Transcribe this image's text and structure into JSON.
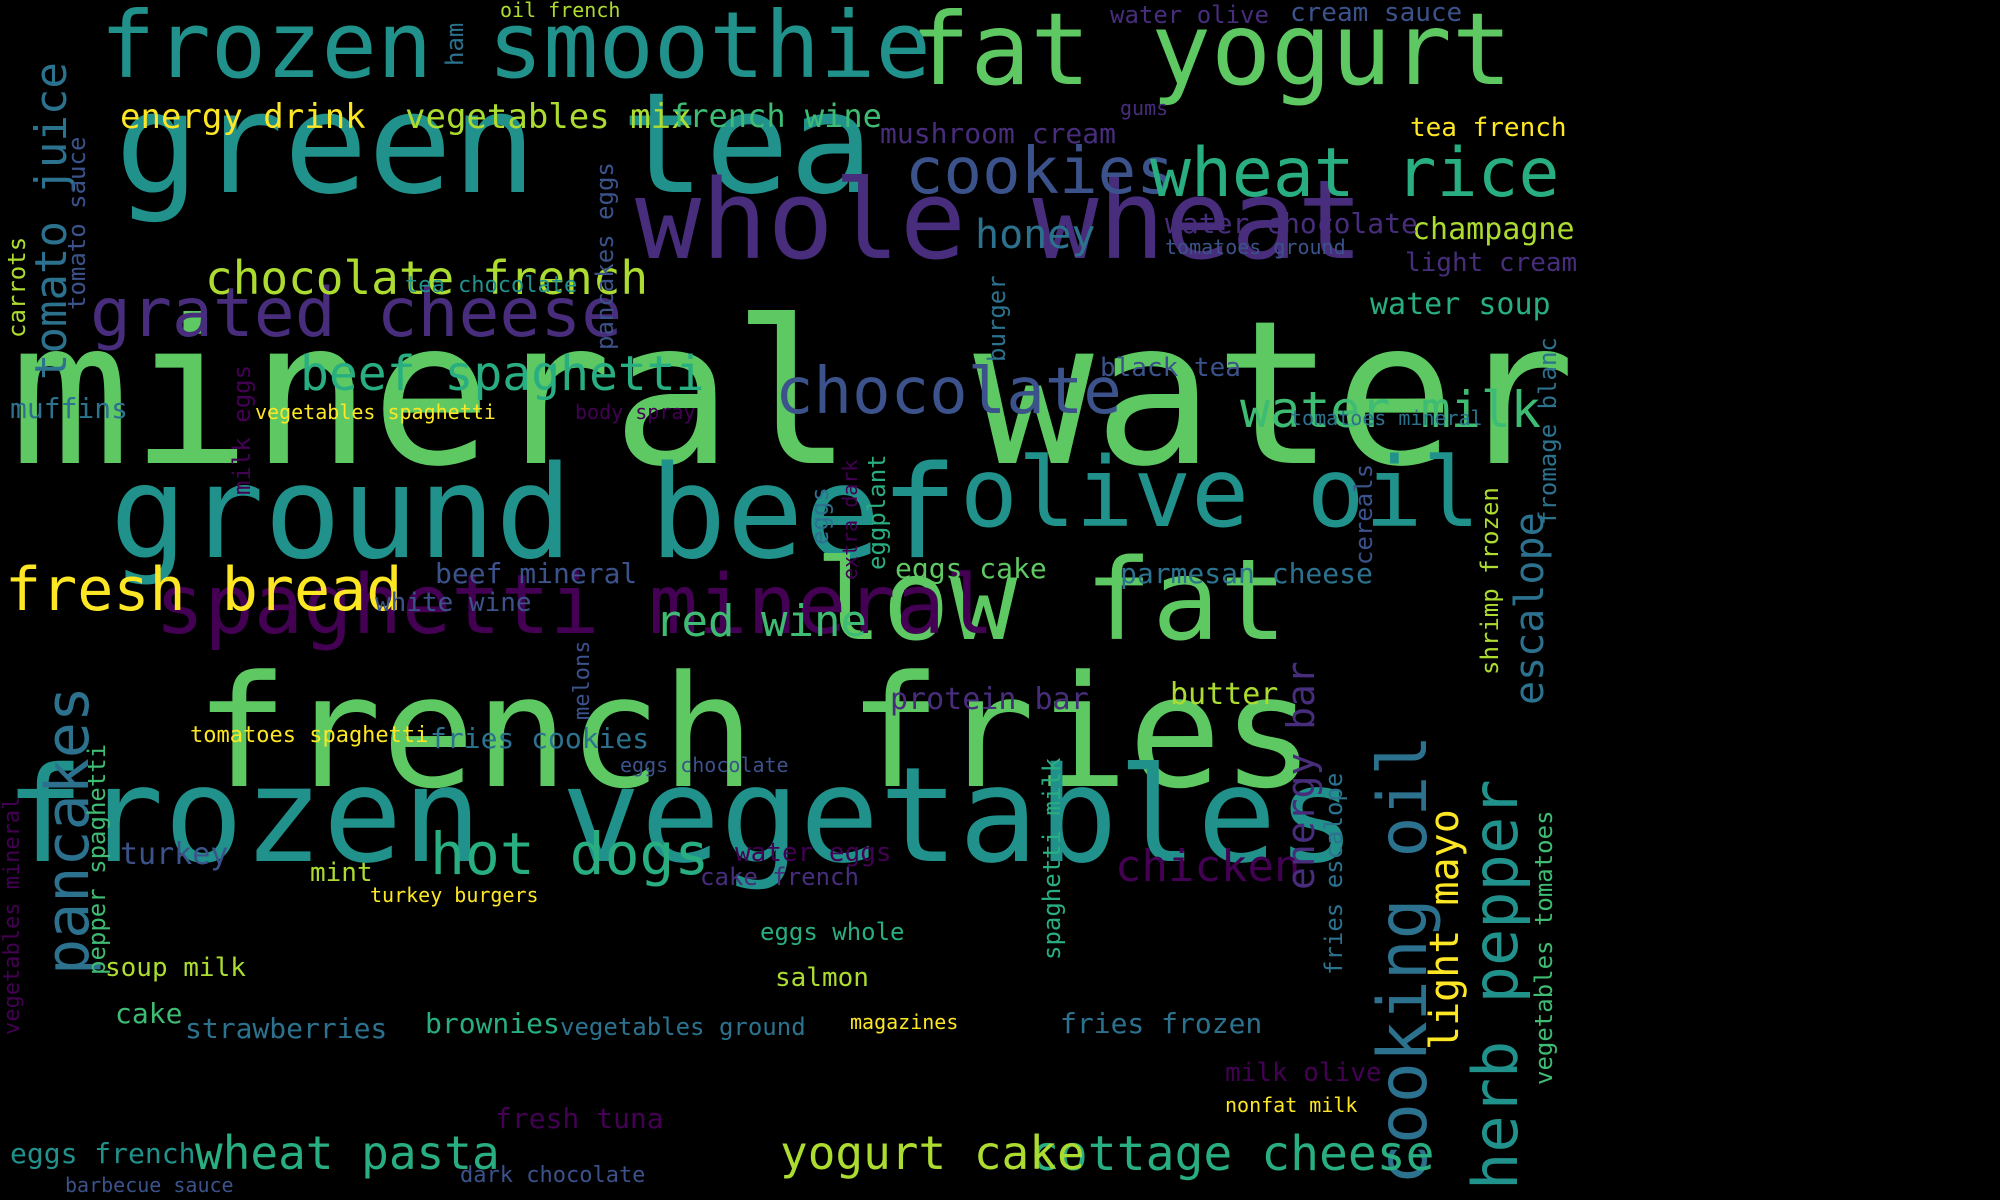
{
  "palette": {
    "c1": "#5ec962",
    "c2": "#21918c",
    "c3": "#2c728e",
    "c4": "#3b528b",
    "c5": "#472d7b",
    "c6": "#440154",
    "c7": "#3fbc73",
    "c8": "#28ae80",
    "c9": "#addc30",
    "c10": "#fde725"
  },
  "words": [
    "mineral water",
    "french fries",
    "green tea",
    "frozen vegetables",
    "ground beef",
    "whole wheat",
    "fat yogurt",
    "frozen smoothie",
    "low fat",
    "olive oil",
    "spaghetti mineral",
    "grated cheese",
    "fresh bread",
    "cookies",
    "wheat rice",
    "chocolate",
    "beef spaghetti",
    "chocolate french",
    "cooking oil",
    "herb pepper",
    "pancakes",
    "tomato juice",
    "hot dogs",
    "water milk",
    "red wine",
    "cottage cheese",
    "yogurt cake",
    "wheat pasta",
    "chicken",
    "energy drink",
    "vegetables mix",
    "french wine",
    "honey",
    "escalope",
    "light mayo",
    "energy bar",
    "champagne",
    "water soup",
    "mushroom cream",
    "water chocolate",
    "protein bar",
    "butter",
    "parmesan cheese",
    "beef mineral",
    "eggs cake",
    "black tea",
    "light cream",
    "tea french",
    "cream sauce",
    "water olive",
    "muffins",
    "turkey",
    "white wine",
    "fries cookies",
    "tomatoes spaghetti",
    "water eggs",
    "cake french",
    "eggs whole",
    "salmon",
    "soup milk",
    "mint",
    "cake",
    "strawberries",
    "brownies",
    "vegetables ground",
    "fries frozen",
    "milk olive",
    "eggs french",
    "fresh tuna",
    "dark chocolate",
    "barbecue sauce",
    "magazines",
    "nonfat milk",
    "vegetables spaghetti",
    "body spray",
    "tomatoes mineral",
    "tea chocolate",
    "tomatoes ground",
    "gums",
    "oil french",
    "ham",
    "eggs chocolate",
    "turkey burgers",
    "tomato sauce",
    "carrots",
    "pancakes eggs",
    "burger",
    "milk eggs",
    "eggs",
    "extra dark",
    "eggplant",
    "melons",
    "pepper spaghetti",
    "vegetables mineral",
    "spaghetti milk",
    "cereals",
    "fries escalope",
    "shrimp frozen",
    "fromage blanc",
    "vegetables tomatoes"
  ]
}
